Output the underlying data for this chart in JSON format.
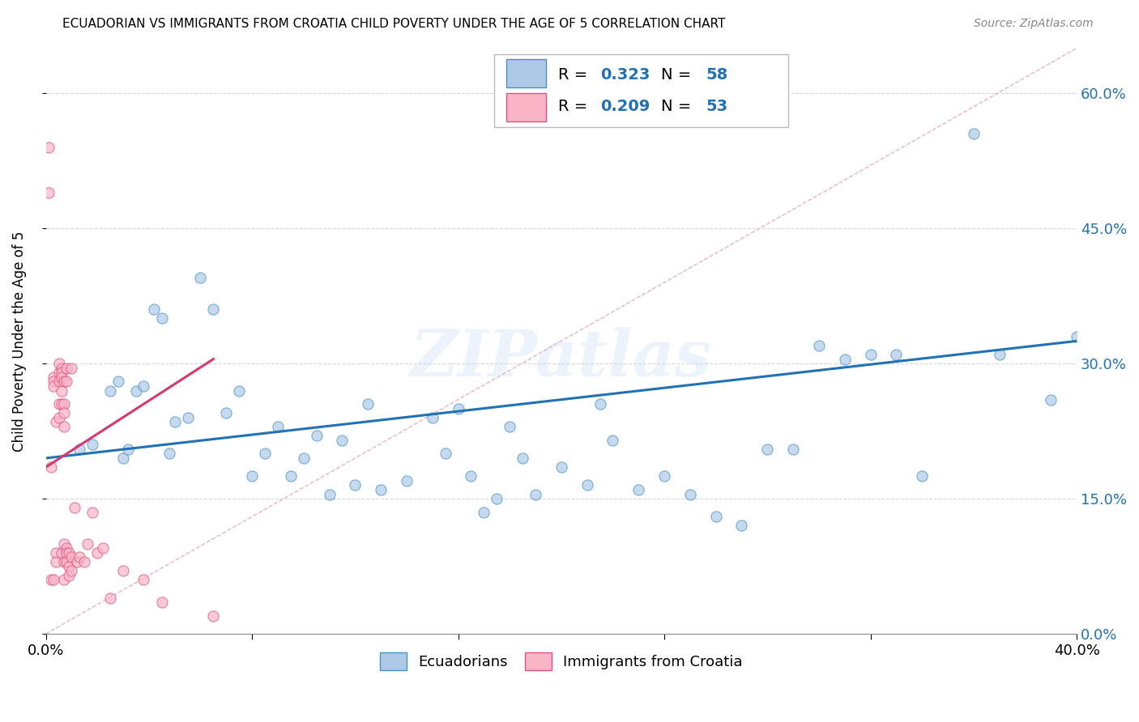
{
  "title": "ECUADORIAN VS IMMIGRANTS FROM CROATIA CHILD POVERTY UNDER THE AGE OF 5 CORRELATION CHART",
  "source": "Source: ZipAtlas.com",
  "ylabel": "Child Poverty Under the Age of 5",
  "blue_color": "#aec9e8",
  "blue_edge_color": "#4393c3",
  "pink_color": "#fbb4c6",
  "pink_edge_color": "#e05080",
  "blue_line_color": "#2171b5",
  "pink_line_color": "#d63870",
  "diagonal_color": "#e8b4c0",
  "watermark": "ZIPatlas",
  "legend_blue_R": "0.323",
  "legend_blue_N": "58",
  "legend_pink_R": "0.209",
  "legend_pink_N": "53",
  "blue_line_x0": 0.0,
  "blue_line_y0": 0.195,
  "blue_line_x1": 0.4,
  "blue_line_y1": 0.325,
  "pink_line_x0": 0.0,
  "pink_line_y0": 0.185,
  "pink_line_x1": 0.065,
  "pink_line_y1": 0.305,
  "xlim": [
    0,
    0.4
  ],
  "ylim": [
    0,
    0.65
  ],
  "x_ticks": [
    0.0,
    0.08,
    0.16,
    0.24,
    0.32,
    0.4
  ],
  "x_tick_labels": [
    "0.0%",
    "",
    "",
    "",
    "",
    "40.0%"
  ],
  "y_ticks": [
    0.0,
    0.15,
    0.3,
    0.45,
    0.6
  ],
  "y_tick_labels": [
    "0.0%",
    "15.0%",
    "30.0%",
    "45.0%",
    "60.0%"
  ],
  "blue_x": [
    0.013,
    0.018,
    0.025,
    0.028,
    0.03,
    0.032,
    0.035,
    0.038,
    0.042,
    0.045,
    0.048,
    0.05,
    0.055,
    0.06,
    0.065,
    0.07,
    0.075,
    0.08,
    0.085,
    0.09,
    0.095,
    0.1,
    0.105,
    0.11,
    0.115,
    0.12,
    0.125,
    0.13,
    0.14,
    0.15,
    0.155,
    0.16,
    0.165,
    0.17,
    0.175,
    0.18,
    0.185,
    0.19,
    0.2,
    0.21,
    0.215,
    0.22,
    0.23,
    0.24,
    0.25,
    0.26,
    0.27,
    0.28,
    0.29,
    0.3,
    0.31,
    0.32,
    0.33,
    0.34,
    0.36,
    0.37,
    0.39,
    0.4
  ],
  "blue_y": [
    0.205,
    0.21,
    0.27,
    0.28,
    0.195,
    0.205,
    0.27,
    0.275,
    0.36,
    0.35,
    0.2,
    0.235,
    0.24,
    0.395,
    0.36,
    0.245,
    0.27,
    0.175,
    0.2,
    0.23,
    0.175,
    0.195,
    0.22,
    0.155,
    0.215,
    0.165,
    0.255,
    0.16,
    0.17,
    0.24,
    0.2,
    0.25,
    0.175,
    0.135,
    0.15,
    0.23,
    0.195,
    0.155,
    0.185,
    0.165,
    0.255,
    0.215,
    0.16,
    0.175,
    0.155,
    0.13,
    0.12,
    0.205,
    0.205,
    0.32,
    0.305,
    0.31,
    0.31,
    0.175,
    0.555,
    0.31,
    0.26,
    0.33
  ],
  "pink_x": [
    0.001,
    0.001,
    0.002,
    0.002,
    0.003,
    0.003,
    0.003,
    0.003,
    0.004,
    0.004,
    0.004,
    0.005,
    0.005,
    0.005,
    0.005,
    0.005,
    0.006,
    0.006,
    0.006,
    0.006,
    0.006,
    0.006,
    0.007,
    0.007,
    0.007,
    0.007,
    0.007,
    0.007,
    0.007,
    0.008,
    0.008,
    0.008,
    0.008,
    0.008,
    0.009,
    0.009,
    0.009,
    0.01,
    0.01,
    0.01,
    0.011,
    0.012,
    0.013,
    0.015,
    0.016,
    0.018,
    0.02,
    0.022,
    0.025,
    0.03,
    0.038,
    0.045,
    0.065
  ],
  "pink_y": [
    0.54,
    0.49,
    0.185,
    0.06,
    0.285,
    0.28,
    0.275,
    0.06,
    0.235,
    0.09,
    0.08,
    0.3,
    0.29,
    0.28,
    0.255,
    0.24,
    0.295,
    0.29,
    0.285,
    0.27,
    0.255,
    0.09,
    0.28,
    0.255,
    0.245,
    0.23,
    0.1,
    0.08,
    0.06,
    0.295,
    0.28,
    0.095,
    0.09,
    0.08,
    0.09,
    0.075,
    0.065,
    0.295,
    0.085,
    0.07,
    0.14,
    0.08,
    0.085,
    0.08,
    0.1,
    0.135,
    0.09,
    0.095,
    0.04,
    0.07,
    0.06,
    0.035,
    0.02
  ]
}
